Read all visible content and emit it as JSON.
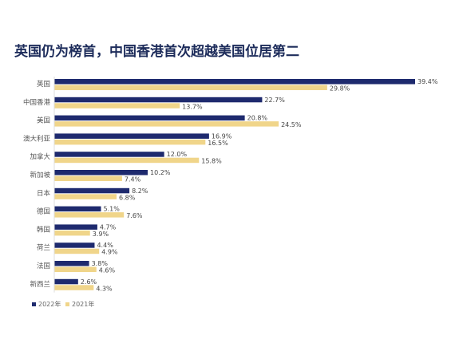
{
  "title": "英国仍为榜首，中国香港首次超越美国位居第二",
  "colors": {
    "series_2022": "#1e2a6e",
    "series_2021": "#f0d58a"
  },
  "chart_data": {
    "type": "bar",
    "orientation": "horizontal",
    "title": "英国仍为榜首，中国香港首次超越美国位居第二",
    "categories": [
      "英国",
      "中国香港",
      "美国",
      "澳大利亚",
      "加拿大",
      "新加坡",
      "日本",
      "德国",
      "韩国",
      "荷兰",
      "法国",
      "新西兰"
    ],
    "series": [
      {
        "name": "2022年",
        "values": [
          39.4,
          22.7,
          20.8,
          16.9,
          12.0,
          10.2,
          8.2,
          5.1,
          4.7,
          4.4,
          3.8,
          2.6
        ],
        "labels": [
          "39.4%",
          "22.7%",
          "20.8%",
          "16.9%",
          "12.0%",
          "10.2%",
          "8.2%",
          "5.1%",
          "4.7%",
          "4.4%",
          "3.8%",
          "2.6%"
        ]
      },
      {
        "name": "2021年",
        "values": [
          29.8,
          13.7,
          24.5,
          16.5,
          15.8,
          7.4,
          6.8,
          7.6,
          3.9,
          4.9,
          4.6,
          4.3
        ],
        "labels": [
          "29.8%",
          "13.7%",
          "24.5%",
          "16.5%",
          "15.8%",
          "7.4%",
          "6.8%",
          "7.6%",
          "3.9%",
          "4.9%",
          "4.6%",
          "4.3%"
        ]
      }
    ],
    "xlim": [
      0,
      39.4
    ],
    "grid": false,
    "legend_position": "bottom-left"
  }
}
